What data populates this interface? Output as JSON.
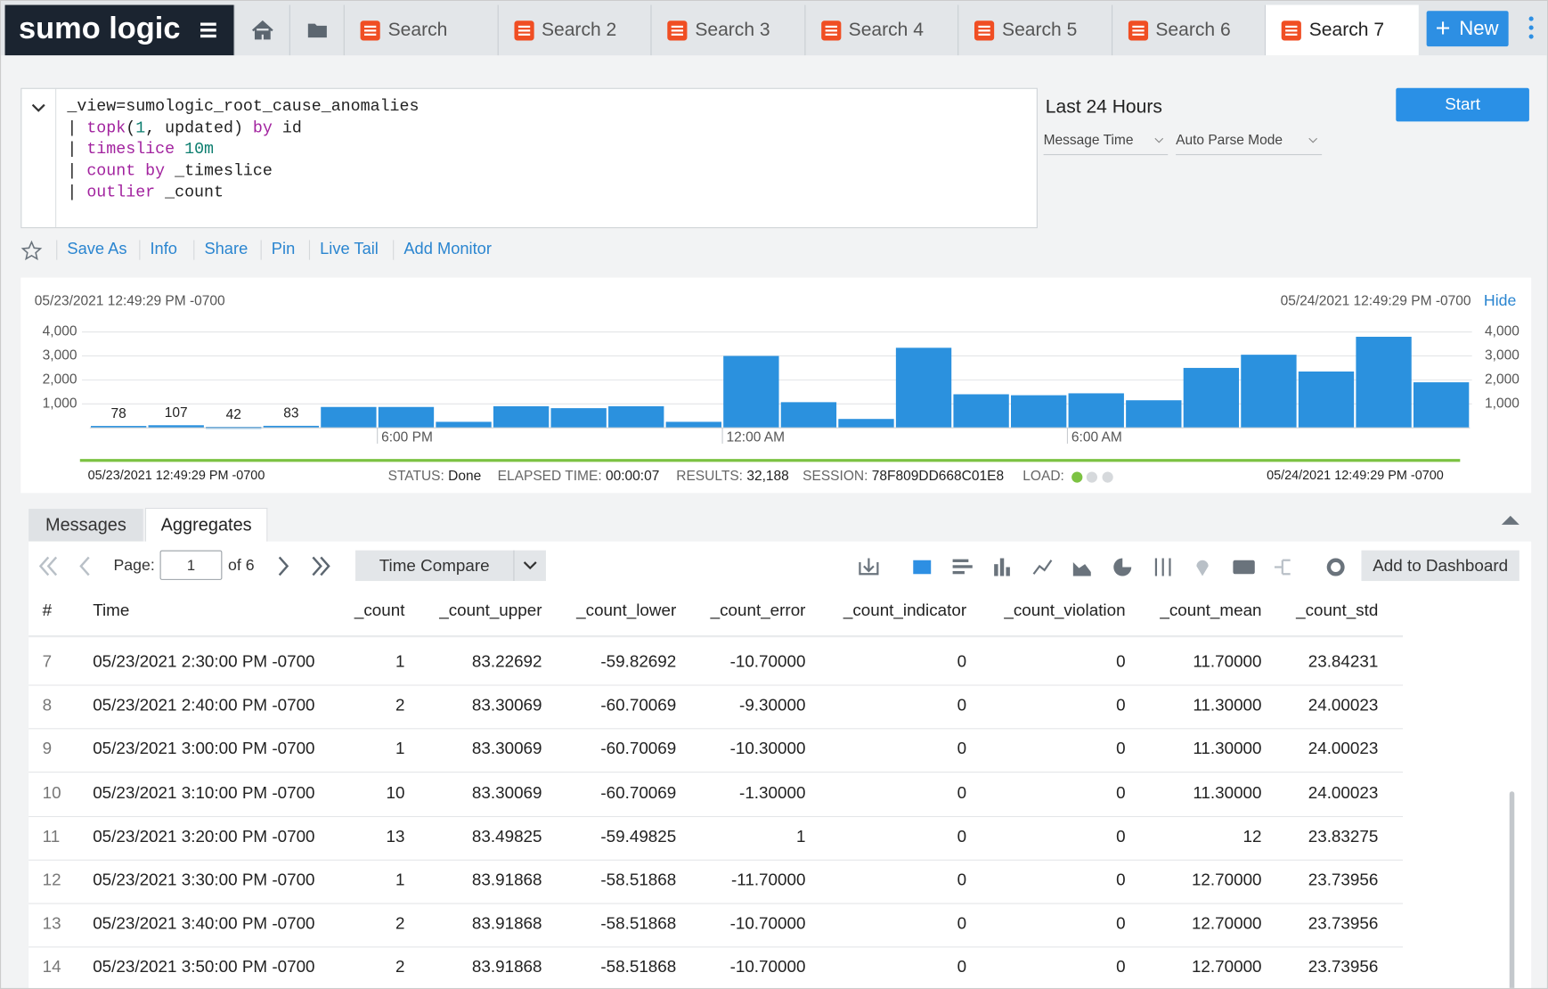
{
  "brand": "sumo logic",
  "tabs": [
    "Search",
    "Search 2",
    "Search 3",
    "Search 4",
    "Search 5",
    "Search 6",
    "Search 7"
  ],
  "active_tab": 6,
  "new_button": "New",
  "query_lines": [
    [
      {
        "text": "_view=sumologic_root_cause_anomalies",
        "style": "plain"
      }
    ],
    [
      {
        "text": "| ",
        "style": "plain"
      },
      {
        "text": "topk",
        "style": "keyword"
      },
      {
        "text": "(",
        "style": "plain"
      },
      {
        "text": "1",
        "style": "number"
      },
      {
        "text": ", updated) ",
        "style": "plain"
      },
      {
        "text": "by",
        "style": "keyword"
      },
      {
        "text": " id",
        "style": "plain"
      }
    ],
    [
      {
        "text": "| ",
        "style": "plain"
      },
      {
        "text": "timeslice",
        "style": "keyword"
      },
      {
        "text": " ",
        "style": "plain"
      },
      {
        "text": "10m",
        "style": "number"
      }
    ],
    [
      {
        "text": "| ",
        "style": "plain"
      },
      {
        "text": "count by",
        "style": "keyword"
      },
      {
        "text": " _timeslice",
        "style": "plain"
      }
    ],
    [
      {
        "text": "| ",
        "style": "plain"
      },
      {
        "text": "outlier",
        "style": "keyword"
      },
      {
        "text": " _count",
        "style": "plain"
      }
    ]
  ],
  "time_range": "Last 24 Hours",
  "time_field": "Message Time",
  "parse_mode": "Auto Parse Mode",
  "start_button": "Start",
  "actions": [
    "Save As",
    "Info",
    "Share",
    "Pin",
    "Live Tail",
    "Add Monitor"
  ],
  "histogram": {
    "start_time": "05/23/2021 12:49:29 PM -0700",
    "end_time": "05/24/2021 12:49:29 PM -0700",
    "hide": "Hide",
    "chart_data": {
      "type": "bar",
      "color": "#2b91de",
      "categories": [
        null,
        null,
        null,
        null,
        null,
        "6:00 PM",
        null,
        null,
        null,
        null,
        null,
        "12:00 AM",
        null,
        null,
        null,
        null,
        null,
        "6:00 AM",
        null,
        null,
        null,
        null,
        null,
        null
      ],
      "values": [
        78,
        107,
        42,
        83,
        870,
        870,
        250,
        900,
        820,
        900,
        250,
        3000,
        1070,
        370,
        3340,
        1400,
        1360,
        1440,
        1150,
        2500,
        3050,
        2350,
        3800,
        1900
      ],
      "value_labels": [
        "78",
        "107",
        "42",
        "83",
        null,
        null,
        null,
        null,
        null,
        null,
        null,
        null,
        null,
        null,
        null,
        null,
        null,
        null,
        null,
        null,
        null,
        null,
        null,
        null
      ],
      "ylim": [
        0,
        4000
      ],
      "yticks": [
        {
          "value": 1000,
          "label": "1,000"
        },
        {
          "value": 2000,
          "label": "2,000"
        },
        {
          "value": 3000,
          "label": "3,000"
        },
        {
          "value": 4000,
          "label": "4,000"
        }
      ],
      "grid": true
    }
  },
  "status": [
    {
      "label": "STATUS:",
      "value": "Done"
    },
    {
      "label": "ELAPSED TIME:",
      "value": "00:00:07"
    },
    {
      "label": "RESULTS:",
      "value": "32,188"
    },
    {
      "label": "SESSION:",
      "value": "78F809DD668C01E8"
    }
  ],
  "load_label": "LOAD:",
  "result_tabs": [
    "Messages",
    "Aggregates"
  ],
  "pager": {
    "page_label": "Page:",
    "page": "1",
    "of": "of 6"
  },
  "time_compare": "Time Compare",
  "add_to_dashboard": "Add to Dashboard",
  "table": {
    "columns": [
      "#",
      "Time",
      "_count",
      "_count_upper",
      "_count_lower",
      "_count_error",
      "_count_indicator",
      "_count_violation",
      "_count_mean",
      "_count_std"
    ],
    "rows": [
      [
        "7",
        "05/23/2021 2:30:00 PM -0700",
        "1",
        "83.22692",
        "-59.82692",
        "-10.70000",
        "0",
        "0",
        "11.70000",
        "23.84231"
      ],
      [
        "8",
        "05/23/2021 2:40:00 PM -0700",
        "2",
        "83.30069",
        "-60.70069",
        "-9.30000",
        "0",
        "0",
        "11.30000",
        "24.00023"
      ],
      [
        "9",
        "05/23/2021 3:00:00 PM -0700",
        "1",
        "83.30069",
        "-60.70069",
        "-10.30000",
        "0",
        "0",
        "11.30000",
        "24.00023"
      ],
      [
        "10",
        "05/23/2021 3:10:00 PM -0700",
        "10",
        "83.30069",
        "-60.70069",
        "-1.30000",
        "0",
        "0",
        "11.30000",
        "24.00023"
      ],
      [
        "11",
        "05/23/2021 3:20:00 PM -0700",
        "13",
        "83.49825",
        "-59.49825",
        "1",
        "0",
        "0",
        "12",
        "23.83275"
      ],
      [
        "12",
        "05/23/2021 3:30:00 PM -0700",
        "1",
        "83.91868",
        "-58.51868",
        "-11.70000",
        "0",
        "0",
        "12.70000",
        "23.73956"
      ],
      [
        "13",
        "05/23/2021 3:40:00 PM -0700",
        "2",
        "83.91868",
        "-58.51868",
        "-10.70000",
        "0",
        "0",
        "12.70000",
        "23.73956"
      ],
      [
        "14",
        "05/23/2021 3:50:00 PM -0700",
        "2",
        "83.91868",
        "-58.51868",
        "-10.70000",
        "0",
        "0",
        "12.70000",
        "23.73956"
      ]
    ]
  }
}
